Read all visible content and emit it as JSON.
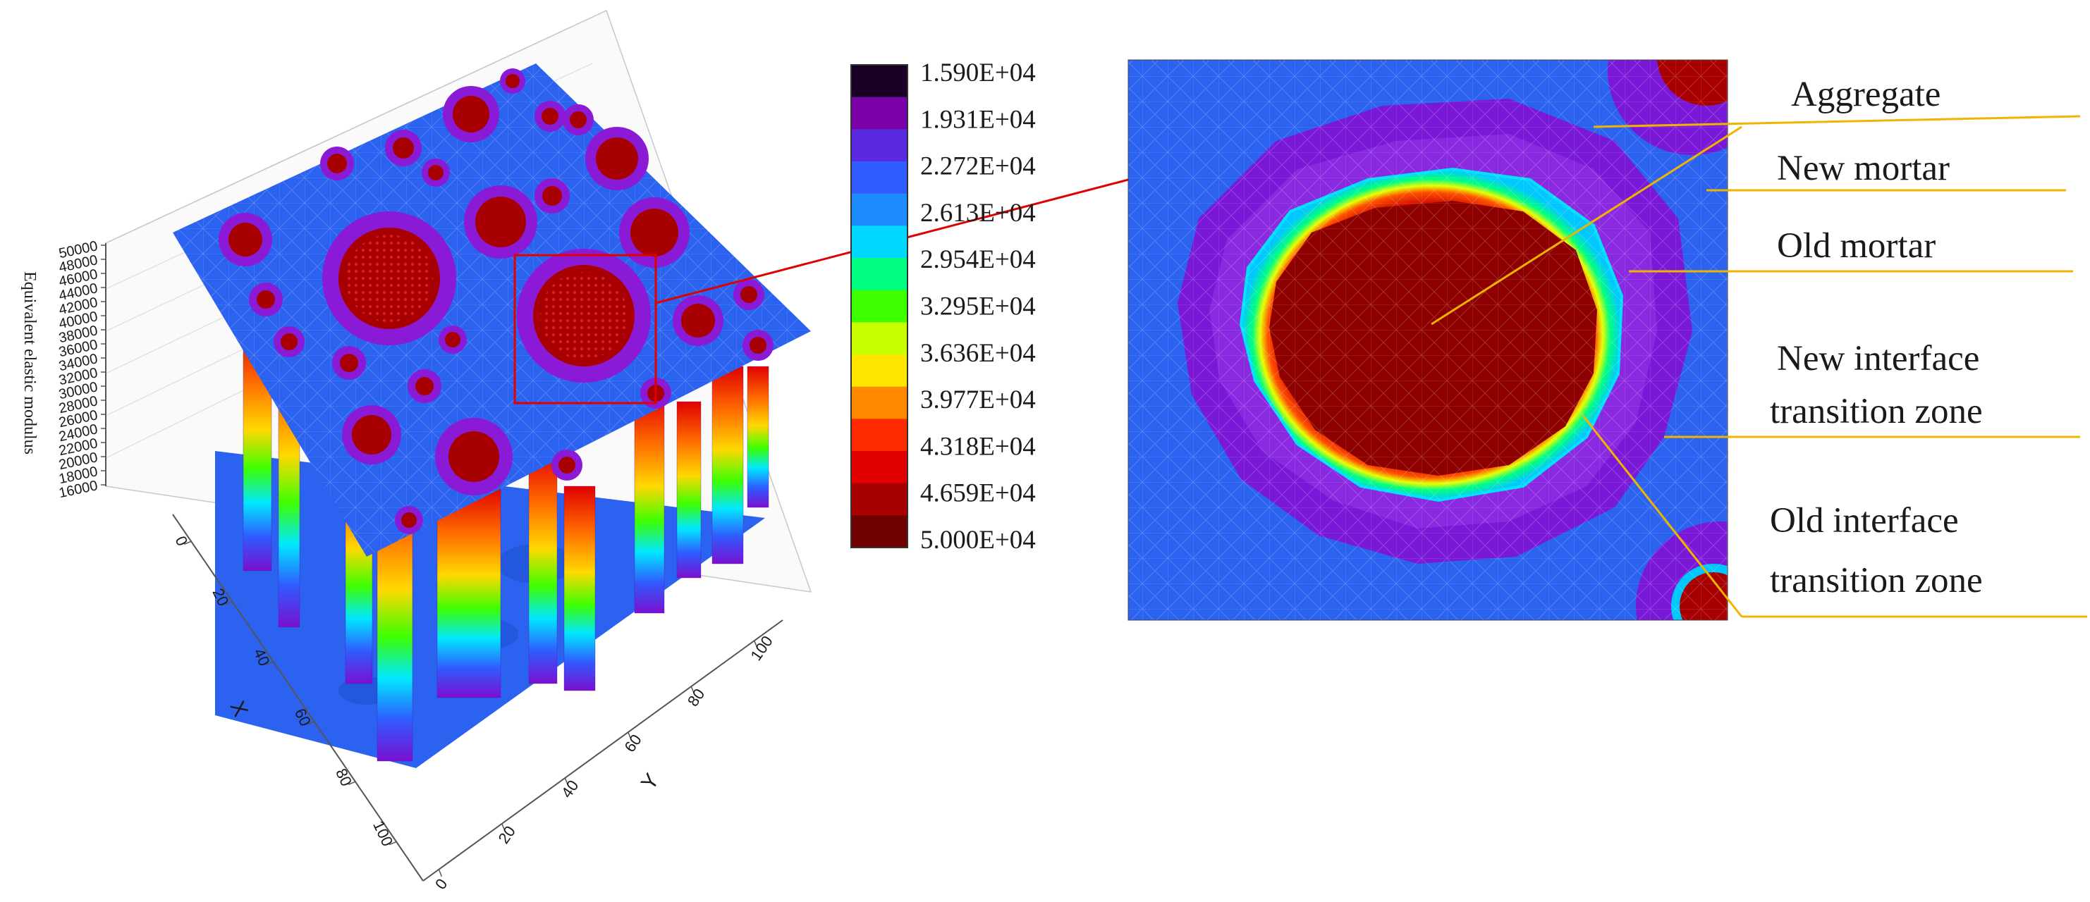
{
  "plot3d": {
    "z_axis_label": "Equivalent elastic modulus",
    "z_ticks": [
      "50000",
      "48000",
      "46000",
      "44000",
      "42000",
      "40000",
      "38000",
      "36000",
      "34000",
      "32000",
      "30000",
      "28000",
      "26000",
      "24000",
      "22000",
      "20000",
      "18000",
      "16000"
    ],
    "x_axis_label": "X",
    "x_ticks": [
      "0",
      "20",
      "40",
      "60",
      "80",
      "100"
    ],
    "y_axis_label": "Y",
    "y_ticks": [
      "0",
      "20",
      "40",
      "60",
      "80",
      "100"
    ]
  },
  "colorbar": {
    "labels": [
      "1.590E+04",
      "1.931E+04",
      "2.272E+04",
      "2.613E+04",
      "2.954E+04",
      "3.295E+04",
      "3.636E+04",
      "3.977E+04",
      "4.318E+04",
      "4.659E+04",
      "5.000E+04"
    ],
    "colors": [
      "#1a0026",
      "#7a00a8",
      "#5a2ae0",
      "#2f5bff",
      "#1e8cff",
      "#00d8ff",
      "#00ff80",
      "#3dff00",
      "#c8ff00",
      "#ffe600",
      "#ff8a00",
      "#ff2a00",
      "#e00000",
      "#a80000",
      "#6e0000"
    ]
  },
  "callouts": {
    "aggregate": "Aggregate",
    "new_mortar": "New mortar",
    "old_mortar": "Old mortar",
    "new_itz_line1": "New interface",
    "new_itz_line2": "transition zone",
    "old_itz_line1": "Old interface",
    "old_itz_line2": "transition zone"
  },
  "colors": {
    "matrix_blue": "#2b63f0",
    "ring_purple": "#8a1ad6",
    "aggregate_red": "#8e0000",
    "leader_orange": "#f0b400",
    "zoom_line_red": "#e00000"
  }
}
